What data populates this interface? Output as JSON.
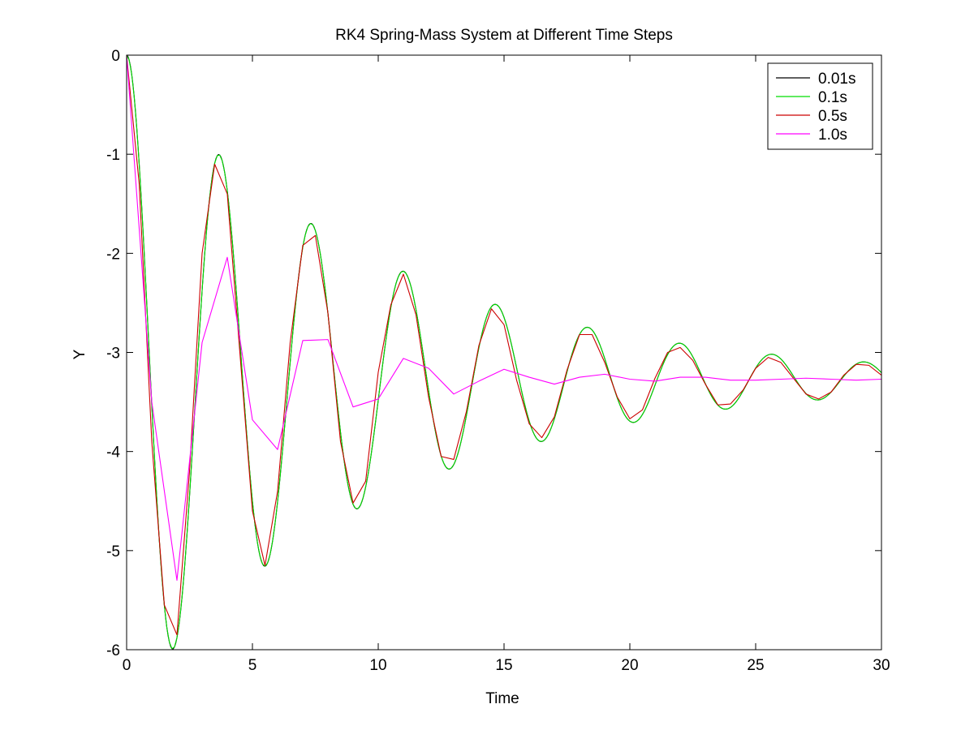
{
  "chart_data": {
    "type": "line",
    "title": "RK4 Spring-Mass System at Different Time Steps",
    "xlabel": "Time",
    "ylabel": "Y",
    "xlim": [
      0,
      30
    ],
    "ylim": [
      -6,
      0
    ],
    "xticks": [
      0,
      5,
      10,
      15,
      20,
      25,
      30
    ],
    "yticks": [
      0,
      -1,
      -2,
      -3,
      -4,
      -5,
      -6
    ],
    "grid": false,
    "legend_position": "top-right",
    "series": [
      {
        "name": "0.01s",
        "color": "#000000",
        "model": {
          "equilibrium": -3.27,
          "amplitude": 3.27,
          "decay": 0.1,
          "omega": 1.716,
          "dt": 0.05
        }
      },
      {
        "name": "0.1s",
        "color": "#00dd00",
        "model": {
          "equilibrium": -3.27,
          "amplitude": 3.27,
          "decay": 0.1,
          "omega": 1.716,
          "dt": 0.1
        }
      },
      {
        "name": "0.5s",
        "color": "#cc0000",
        "x": [
          0,
          0.5,
          1,
          1.5,
          2,
          2.5,
          3,
          3.5,
          4,
          4.5,
          5,
          5.5,
          6,
          6.5,
          7,
          7.5,
          8,
          8.5,
          9,
          9.5,
          10,
          10.5,
          11,
          11.5,
          12,
          12.5,
          13,
          13.5,
          14,
          14.5,
          15,
          15.5,
          16,
          16.5,
          17,
          17.5,
          18,
          18.5,
          19,
          19.5,
          20,
          20.5,
          21,
          21.5,
          22,
          22.5,
          23,
          23.5,
          24,
          24.5,
          25,
          25.5,
          26,
          26.5,
          27,
          27.5,
          28,
          28.5,
          29,
          29.5,
          30
        ],
        "y": [
          0,
          -1.3,
          -3.9,
          -5.55,
          -5.85,
          -4.2,
          -2.0,
          -1.1,
          -1.4,
          -3.0,
          -4.6,
          -5.15,
          -4.4,
          -2.9,
          -1.92,
          -1.82,
          -2.6,
          -3.9,
          -4.52,
          -4.3,
          -3.2,
          -2.52,
          -2.21,
          -2.62,
          -3.45,
          -4.05,
          -4.08,
          -3.6,
          -2.93,
          -2.56,
          -2.72,
          -3.28,
          -3.72,
          -3.86,
          -3.65,
          -3.18,
          -2.82,
          -2.82,
          -3.1,
          -3.45,
          -3.67,
          -3.58,
          -3.26,
          -3.0,
          -2.95,
          -3.08,
          -3.32,
          -3.53,
          -3.52,
          -3.38,
          -3.16,
          -3.05,
          -3.1,
          -3.26,
          -3.42,
          -3.47,
          -3.4,
          -3.23,
          -3.12,
          -3.13,
          -3.23
        ]
      },
      {
        "name": "1.0s",
        "color": "#ff00ff",
        "x": [
          0,
          1,
          2,
          3,
          4,
          5,
          6,
          7,
          8,
          9,
          10,
          11,
          12,
          13,
          14,
          15,
          16,
          17,
          18,
          19,
          20,
          21,
          22,
          23,
          24,
          25,
          26,
          27,
          28,
          29,
          30
        ],
        "y": [
          0,
          -3.5,
          -5.3,
          -2.9,
          -2.04,
          -3.68,
          -3.98,
          -2.88,
          -2.87,
          -3.55,
          -3.47,
          -3.06,
          -3.16,
          -3.42,
          -3.29,
          -3.17,
          -3.25,
          -3.32,
          -3.25,
          -3.22,
          -3.27,
          -3.29,
          -3.25,
          -3.25,
          -3.28,
          -3.28,
          -3.27,
          -3.26,
          -3.27,
          -3.28,
          -3.27
        ]
      }
    ]
  }
}
